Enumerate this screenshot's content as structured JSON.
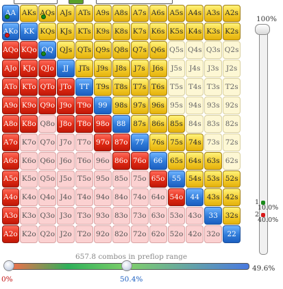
{
  "header": {
    "segments": [
      "",
      "",
      ""
    ]
  },
  "grid": [
    [
      [
        "AA",
        "b",
        1
      ],
      [
        "AKs",
        "y",
        0
      ],
      [
        "AQs",
        "y",
        1
      ],
      [
        "AJs",
        "y",
        0
      ],
      [
        "ATs",
        "y",
        0
      ],
      [
        "A9s",
        "y",
        0
      ],
      [
        "A8s",
        "y",
        0
      ],
      [
        "A7s",
        "y",
        0
      ],
      [
        "A6s",
        "y",
        0
      ],
      [
        "A5s",
        "y",
        0
      ],
      [
        "A4s",
        "y",
        0
      ],
      [
        "A3s",
        "y",
        0
      ],
      [
        "A2s",
        "y",
        0
      ]
    ],
    [
      [
        "AKo",
        "b",
        2
      ],
      [
        "KK",
        "b",
        0
      ],
      [
        "KQs",
        "y",
        0
      ],
      [
        "KJs",
        "y",
        0
      ],
      [
        "KTs",
        "y",
        0
      ],
      [
        "K9s",
        "y",
        0
      ],
      [
        "K8s",
        "y",
        0
      ],
      [
        "K7s",
        "y",
        0
      ],
      [
        "K6s",
        "y",
        0
      ],
      [
        "K5s",
        "y",
        0
      ],
      [
        "K4s",
        "y",
        0
      ],
      [
        "K3s",
        "y",
        0
      ],
      [
        "K2s",
        "y",
        0
      ]
    ],
    [
      [
        "AQo",
        "r",
        0
      ],
      [
        "KQo",
        "r",
        0
      ],
      [
        "QQ",
        "b",
        1
      ],
      [
        "QJs",
        "y",
        0
      ],
      [
        "QTs",
        "y",
        0
      ],
      [
        "Q9s",
        "y",
        0
      ],
      [
        "Q8s",
        "y",
        0
      ],
      [
        "Q7s",
        "y",
        0
      ],
      [
        "Q6s",
        "y",
        0
      ],
      [
        "Q5s",
        "w",
        0
      ],
      [
        "Q4s",
        "w",
        0
      ],
      [
        "Q3s",
        "w",
        0
      ],
      [
        "Q2s",
        "w",
        0
      ]
    ],
    [
      [
        "AJo",
        "r",
        0
      ],
      [
        "KJo",
        "r",
        0
      ],
      [
        "QJo",
        "r",
        0
      ],
      [
        "JJ",
        "b",
        0
      ],
      [
        "JTs",
        "y",
        0
      ],
      [
        "J9s",
        "y",
        0
      ],
      [
        "J8s",
        "y",
        0
      ],
      [
        "J7s",
        "y",
        0
      ],
      [
        "J6s",
        "y",
        0
      ],
      [
        "J5s",
        "w",
        0
      ],
      [
        "J4s",
        "w",
        0
      ],
      [
        "J3s",
        "w",
        0
      ],
      [
        "J2s",
        "w",
        0
      ]
    ],
    [
      [
        "ATo",
        "r",
        0
      ],
      [
        "KTo",
        "r",
        0
      ],
      [
        "QTo",
        "r",
        0
      ],
      [
        "JTo",
        "r",
        0
      ],
      [
        "TT",
        "b",
        0
      ],
      [
        "T9s",
        "y",
        0
      ],
      [
        "T8s",
        "y",
        0
      ],
      [
        "T7s",
        "y",
        0
      ],
      [
        "T6s",
        "y",
        0
      ],
      [
        "T5s",
        "w",
        0
      ],
      [
        "T4s",
        "w",
        0
      ],
      [
        "T3s",
        "w",
        0
      ],
      [
        "T2s",
        "w",
        0
      ]
    ],
    [
      [
        "A9o",
        "r",
        0
      ],
      [
        "K9o",
        "r",
        0
      ],
      [
        "Q9o",
        "r",
        0
      ],
      [
        "J9o",
        "r",
        0
      ],
      [
        "T9o",
        "r",
        0
      ],
      [
        "99",
        "b",
        0
      ],
      [
        "98s",
        "y",
        0
      ],
      [
        "97s",
        "y",
        0
      ],
      [
        "96s",
        "y",
        0
      ],
      [
        "95s",
        "w",
        0
      ],
      [
        "94s",
        "w",
        0
      ],
      [
        "93s",
        "w",
        0
      ],
      [
        "92s",
        "w",
        0
      ]
    ],
    [
      [
        "A8o",
        "r",
        0
      ],
      [
        "K8o",
        "r",
        0
      ],
      [
        "Q8o",
        "p",
        0
      ],
      [
        "J8o",
        "r",
        0
      ],
      [
        "T8o",
        "r",
        0
      ],
      [
        "98o",
        "r",
        0
      ],
      [
        "88",
        "b",
        0
      ],
      [
        "87s",
        "y",
        0
      ],
      [
        "86s",
        "y",
        0
      ],
      [
        "85s",
        "y",
        0
      ],
      [
        "84s",
        "w",
        0
      ],
      [
        "83s",
        "w",
        0
      ],
      [
        "82s",
        "w",
        0
      ]
    ],
    [
      [
        "A7o",
        "r",
        0
      ],
      [
        "K7o",
        "p",
        0
      ],
      [
        "Q7o",
        "p",
        0
      ],
      [
        "J7o",
        "p",
        0
      ],
      [
        "T7o",
        "p",
        0
      ],
      [
        "97o",
        "r",
        0
      ],
      [
        "87o",
        "r",
        0
      ],
      [
        "77",
        "b",
        0
      ],
      [
        "76s",
        "y",
        0
      ],
      [
        "75s",
        "y",
        0
      ],
      [
        "74s",
        "y",
        0
      ],
      [
        "73s",
        "w",
        0
      ],
      [
        "72s",
        "w",
        0
      ]
    ],
    [
      [
        "A6o",
        "r",
        0
      ],
      [
        "K6o",
        "p",
        0
      ],
      [
        "Q6o",
        "p",
        0
      ],
      [
        "J6o",
        "p",
        0
      ],
      [
        "T6o",
        "p",
        0
      ],
      [
        "96o",
        "p",
        0
      ],
      [
        "86o",
        "r",
        0
      ],
      [
        "76o",
        "r",
        0
      ],
      [
        "66",
        "b",
        0
      ],
      [
        "65s",
        "y",
        0
      ],
      [
        "64s",
        "y",
        0
      ],
      [
        "63s",
        "y",
        0
      ],
      [
        "62s",
        "w",
        0
      ]
    ],
    [
      [
        "A5o",
        "r",
        0
      ],
      [
        "K5o",
        "p",
        0
      ],
      [
        "Q5o",
        "p",
        0
      ],
      [
        "J5o",
        "p",
        0
      ],
      [
        "T5o",
        "p",
        0
      ],
      [
        "95o",
        "p",
        0
      ],
      [
        "85o",
        "p",
        0
      ],
      [
        "75o",
        "p",
        0
      ],
      [
        "65o",
        "r",
        0
      ],
      [
        "55",
        "b",
        0
      ],
      [
        "54s",
        "y",
        0
      ],
      [
        "53s",
        "y",
        0
      ],
      [
        "52s",
        "y",
        0
      ]
    ],
    [
      [
        "A4o",
        "r",
        0
      ],
      [
        "K4o",
        "p",
        0
      ],
      [
        "Q4o",
        "p",
        0
      ],
      [
        "J4o",
        "p",
        0
      ],
      [
        "T4o",
        "p",
        0
      ],
      [
        "94o",
        "p",
        0
      ],
      [
        "84o",
        "p",
        0
      ],
      [
        "74o",
        "p",
        0
      ],
      [
        "64o",
        "p",
        0
      ],
      [
        "54o",
        "r",
        0
      ],
      [
        "44",
        "b",
        0
      ],
      [
        "43s",
        "y",
        0
      ],
      [
        "42s",
        "y",
        0
      ]
    ],
    [
      [
        "A3o",
        "r",
        0
      ],
      [
        "K3o",
        "p",
        0
      ],
      [
        "Q3o",
        "p",
        0
      ],
      [
        "J3o",
        "p",
        0
      ],
      [
        "T3o",
        "p",
        0
      ],
      [
        "93o",
        "p",
        0
      ],
      [
        "83o",
        "p",
        0
      ],
      [
        "73o",
        "p",
        0
      ],
      [
        "63o",
        "p",
        0
      ],
      [
        "53o",
        "p",
        0
      ],
      [
        "43o",
        "p",
        0
      ],
      [
        "33",
        "b",
        0
      ],
      [
        "32s",
        "y",
        0
      ]
    ],
    [
      [
        "A2o",
        "r",
        0
      ],
      [
        "K2o",
        "p",
        0
      ],
      [
        "Q2o",
        "p",
        0
      ],
      [
        "J2o",
        "p",
        0
      ],
      [
        "T2o",
        "p",
        0
      ],
      [
        "92o",
        "p",
        0
      ],
      [
        "82o",
        "p",
        0
      ],
      [
        "72o",
        "p",
        0
      ],
      [
        "62o",
        "p",
        0
      ],
      [
        "52o",
        "p",
        0
      ],
      [
        "42o",
        "p",
        0
      ],
      [
        "32o",
        "p",
        0
      ],
      [
        "22",
        "b",
        0
      ]
    ]
  ],
  "vertical_slider": {
    "label": "100%",
    "value": 1.0
  },
  "legend": {
    "green_pct": "10.0%",
    "red_pct": "40.0%",
    "green_num": "1",
    "red_num": "2",
    "green_color": "#1a8a1a",
    "red_color": "#d81a1a"
  },
  "range_slider": {
    "combos_text": "657.8 combos in preflop range",
    "left_value": "0%",
    "mid_value": "50.4%",
    "right_value": "49.6%",
    "left_frac": 0.0,
    "mid_frac": 0.504,
    "right_frac": 1.0
  }
}
